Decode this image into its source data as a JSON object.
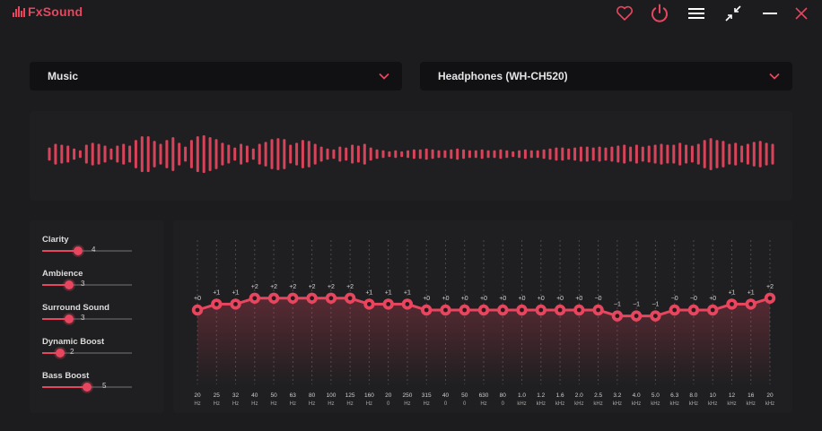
{
  "app": {
    "name": "FxSound",
    "accent": "#e8465f",
    "background": "#1c1c1e"
  },
  "titlebar": {
    "icons": [
      "favorite-heart-icon",
      "power-icon",
      "menu-hamburger-icon",
      "minimize-view-icon",
      "minimize-icon",
      "close-icon"
    ]
  },
  "preset": {
    "selected": "Music"
  },
  "output_device": {
    "selected": "Headphones (WH-CH520)"
  },
  "effects": [
    {
      "label": "Clarity",
      "value": "4",
      "level": 4
    },
    {
      "label": "Ambience",
      "value": "3",
      "level": 3
    },
    {
      "label": "Surround Sound",
      "value": "3",
      "level": 3
    },
    {
      "label": "Dynamic Boost",
      "value": "2",
      "level": 2
    },
    {
      "label": "Bass Boost",
      "value": "5",
      "level": 5
    }
  ],
  "effects_max": 10,
  "visualizer": {
    "levels": [
      0.35,
      0.55,
      0.5,
      0.45,
      0.3,
      0.2,
      0.5,
      0.6,
      0.55,
      0.45,
      0.3,
      0.45,
      0.55,
      0.45,
      0.75,
      0.95,
      0.95,
      0.7,
      0.55,
      0.75,
      0.9,
      0.6,
      0.4,
      0.75,
      0.95,
      1.0,
      0.9,
      0.8,
      0.6,
      0.5,
      0.35,
      0.55,
      0.45,
      0.3,
      0.55,
      0.65,
      0.8,
      0.85,
      0.8,
      0.5,
      0.6,
      0.75,
      0.7,
      0.55,
      0.4,
      0.3,
      0.25,
      0.4,
      0.35,
      0.5,
      0.45,
      0.55,
      0.35,
      0.25,
      0.2,
      0.15,
      0.2,
      0.15,
      0.2,
      0.25,
      0.25,
      0.3,
      0.25,
      0.2,
      0.2,
      0.25,
      0.3,
      0.25,
      0.2,
      0.2,
      0.25,
      0.2,
      0.2,
      0.25,
      0.2,
      0.15,
      0.2,
      0.25,
      0.2,
      0.2,
      0.25,
      0.3,
      0.35,
      0.35,
      0.3,
      0.35,
      0.4,
      0.4,
      0.35,
      0.4,
      0.35,
      0.4,
      0.45,
      0.5,
      0.4,
      0.5,
      0.4,
      0.45,
      0.5,
      0.55,
      0.5,
      0.5,
      0.6,
      0.5,
      0.45,
      0.55,
      0.75,
      0.85,
      0.75,
      0.7,
      0.55,
      0.6,
      0.45,
      0.55,
      0.65,
      0.7,
      0.6,
      0.55
    ]
  },
  "equalizer": {
    "min_db": -12,
    "max_db": 12,
    "bands": [
      {
        "freq": "20",
        "unit": "Hz",
        "gain": "+0",
        "db": 0
      },
      {
        "freq": "25",
        "unit": "Hz",
        "gain": "+1",
        "db": 1
      },
      {
        "freq": "32",
        "unit": "Hz",
        "gain": "+1",
        "db": 1
      },
      {
        "freq": "40",
        "unit": "Hz",
        "gain": "+2",
        "db": 2
      },
      {
        "freq": "50",
        "unit": "Hz",
        "gain": "+2",
        "db": 2
      },
      {
        "freq": "63",
        "unit": "Hz",
        "gain": "+2",
        "db": 2
      },
      {
        "freq": "80",
        "unit": "Hz",
        "gain": "+2",
        "db": 2
      },
      {
        "freq": "100",
        "unit": "Hz",
        "gain": "+2",
        "db": 2
      },
      {
        "freq": "125",
        "unit": "Hz",
        "gain": "+2",
        "db": 2
      },
      {
        "freq": "160",
        "unit": "Hz",
        "gain": "+1",
        "db": 1
      },
      {
        "freq": "20",
        "unit": "0",
        "gain": "+1",
        "db": 1
      },
      {
        "freq": "250",
        "unit": "Hz",
        "gain": "+1",
        "db": 1
      },
      {
        "freq": "315",
        "unit": "Hz",
        "gain": "+0",
        "db": 0
      },
      {
        "freq": "40",
        "unit": "0",
        "gain": "+0",
        "db": 0
      },
      {
        "freq": "50",
        "unit": "0",
        "gain": "+0",
        "db": 0
      },
      {
        "freq": "630",
        "unit": "Hz",
        "gain": "+0",
        "db": 0
      },
      {
        "freq": "80",
        "unit": "0",
        "gain": "+0",
        "db": 0
      },
      {
        "freq": "1.0",
        "unit": "kHz",
        "gain": "+0",
        "db": 0
      },
      {
        "freq": "1.2",
        "unit": "kHz",
        "gain": "+0",
        "db": 0
      },
      {
        "freq": "1.6",
        "unit": "kHz",
        "gain": "+0",
        "db": 0
      },
      {
        "freq": "2.0",
        "unit": "kHz",
        "gain": "+0",
        "db": 0
      },
      {
        "freq": "2.5",
        "unit": "kHz",
        "gain": "−0",
        "db": 0
      },
      {
        "freq": "3.2",
        "unit": "kHz",
        "gain": "−1",
        "db": -1
      },
      {
        "freq": "4.0",
        "unit": "kHz",
        "gain": "−1",
        "db": -1
      },
      {
        "freq": "5.0",
        "unit": "kHz",
        "gain": "−1",
        "db": -1
      },
      {
        "freq": "6.3",
        "unit": "kHz",
        "gain": "−0",
        "db": 0
      },
      {
        "freq": "8.0",
        "unit": "kHz",
        "gain": "−0",
        "db": 0
      },
      {
        "freq": "10",
        "unit": "kHz",
        "gain": "+0",
        "db": 0
      },
      {
        "freq": "12",
        "unit": "kHz",
        "gain": "+1",
        "db": 1
      },
      {
        "freq": "16",
        "unit": "kHz",
        "gain": "+1",
        "db": 1
      },
      {
        "freq": "20",
        "unit": "kHz",
        "gain": "+2",
        "db": 2
      }
    ]
  }
}
